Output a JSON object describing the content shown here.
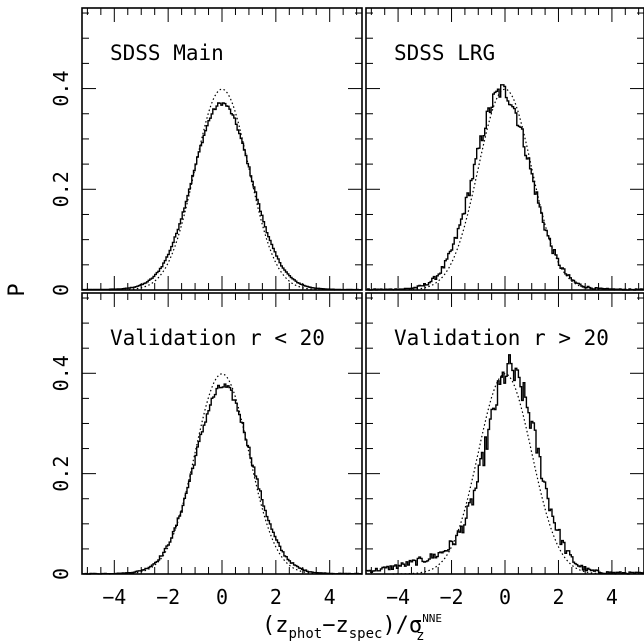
{
  "figure": {
    "ylabel": "P",
    "xlabel_main": "(z",
    "xlabel_sub_phot": "phot",
    "xlabel_minus": "−z",
    "xlabel_sub_spec": "spec",
    "xlabel_tail": ")/σ",
    "xlabel_sup": "NNE",
    "xlabel_sub_z": "z"
  },
  "chart_data": [
    {
      "type": "line",
      "title": "SDSS Main",
      "xlim": [
        -5.2,
        5.2
      ],
      "ylim": [
        0,
        0.56
      ],
      "xticks": [
        "-4",
        "-2",
        "0",
        "2",
        "4"
      ],
      "yticks": [
        "0",
        "0.2",
        "0.4"
      ],
      "series": [
        {
          "style": "solid",
          "noise": 0.004,
          "peak": 0.365,
          "mu": 0.0,
          "sigma": 1.09,
          "tails": 0.006
        },
        {
          "style": "dotted",
          "kind": "gaussian",
          "mu": 0,
          "sigma": 1
        }
      ]
    },
    {
      "type": "line",
      "title": "SDSS LRG",
      "xlim": [
        -5.2,
        5.2
      ],
      "ylim": [
        0,
        0.56
      ],
      "xticks": [
        "-4",
        "-2",
        "0",
        "2",
        "4"
      ],
      "yticks": [
        "0",
        "0.2",
        "0.4"
      ],
      "series": [
        {
          "style": "solid",
          "noise": 0.018,
          "peak": 0.39,
          "mu": -0.1,
          "sigma": 1.05,
          "tails": 0.006
        },
        {
          "style": "dotted",
          "kind": "gaussian",
          "mu": 0,
          "sigma": 1
        }
      ]
    },
    {
      "type": "line",
      "title": "Validation r < 20",
      "xlim": [
        -5.2,
        5.2
      ],
      "ylim": [
        0,
        0.56
      ],
      "xticks": [
        "-4",
        "-2",
        "0",
        "2",
        "4"
      ],
      "yticks": [
        "0",
        "0.2",
        "0.4"
      ],
      "series": [
        {
          "style": "solid",
          "noise": 0.008,
          "peak": 0.37,
          "mu": 0.05,
          "sigma": 1.06,
          "tails": 0.004
        },
        {
          "style": "dotted",
          "kind": "gaussian",
          "mu": 0,
          "sigma": 1
        }
      ]
    },
    {
      "type": "line",
      "title": "Validation r > 20",
      "xlim": [
        -5.2,
        5.2
      ],
      "ylim": [
        0,
        0.56
      ],
      "xticks": [
        "-4",
        "-2",
        "0",
        "2",
        "4"
      ],
      "yticks": [
        "0",
        "0.2",
        "0.4"
      ],
      "series": [
        {
          "style": "solid",
          "noise": 0.028,
          "peak": 0.38,
          "mu": 0.3,
          "sigma": 0.95,
          "tails": 0.012,
          "skew_left": 1.8
        },
        {
          "style": "dotted",
          "kind": "gaussian",
          "mu": 0,
          "sigma": 1
        }
      ]
    }
  ]
}
